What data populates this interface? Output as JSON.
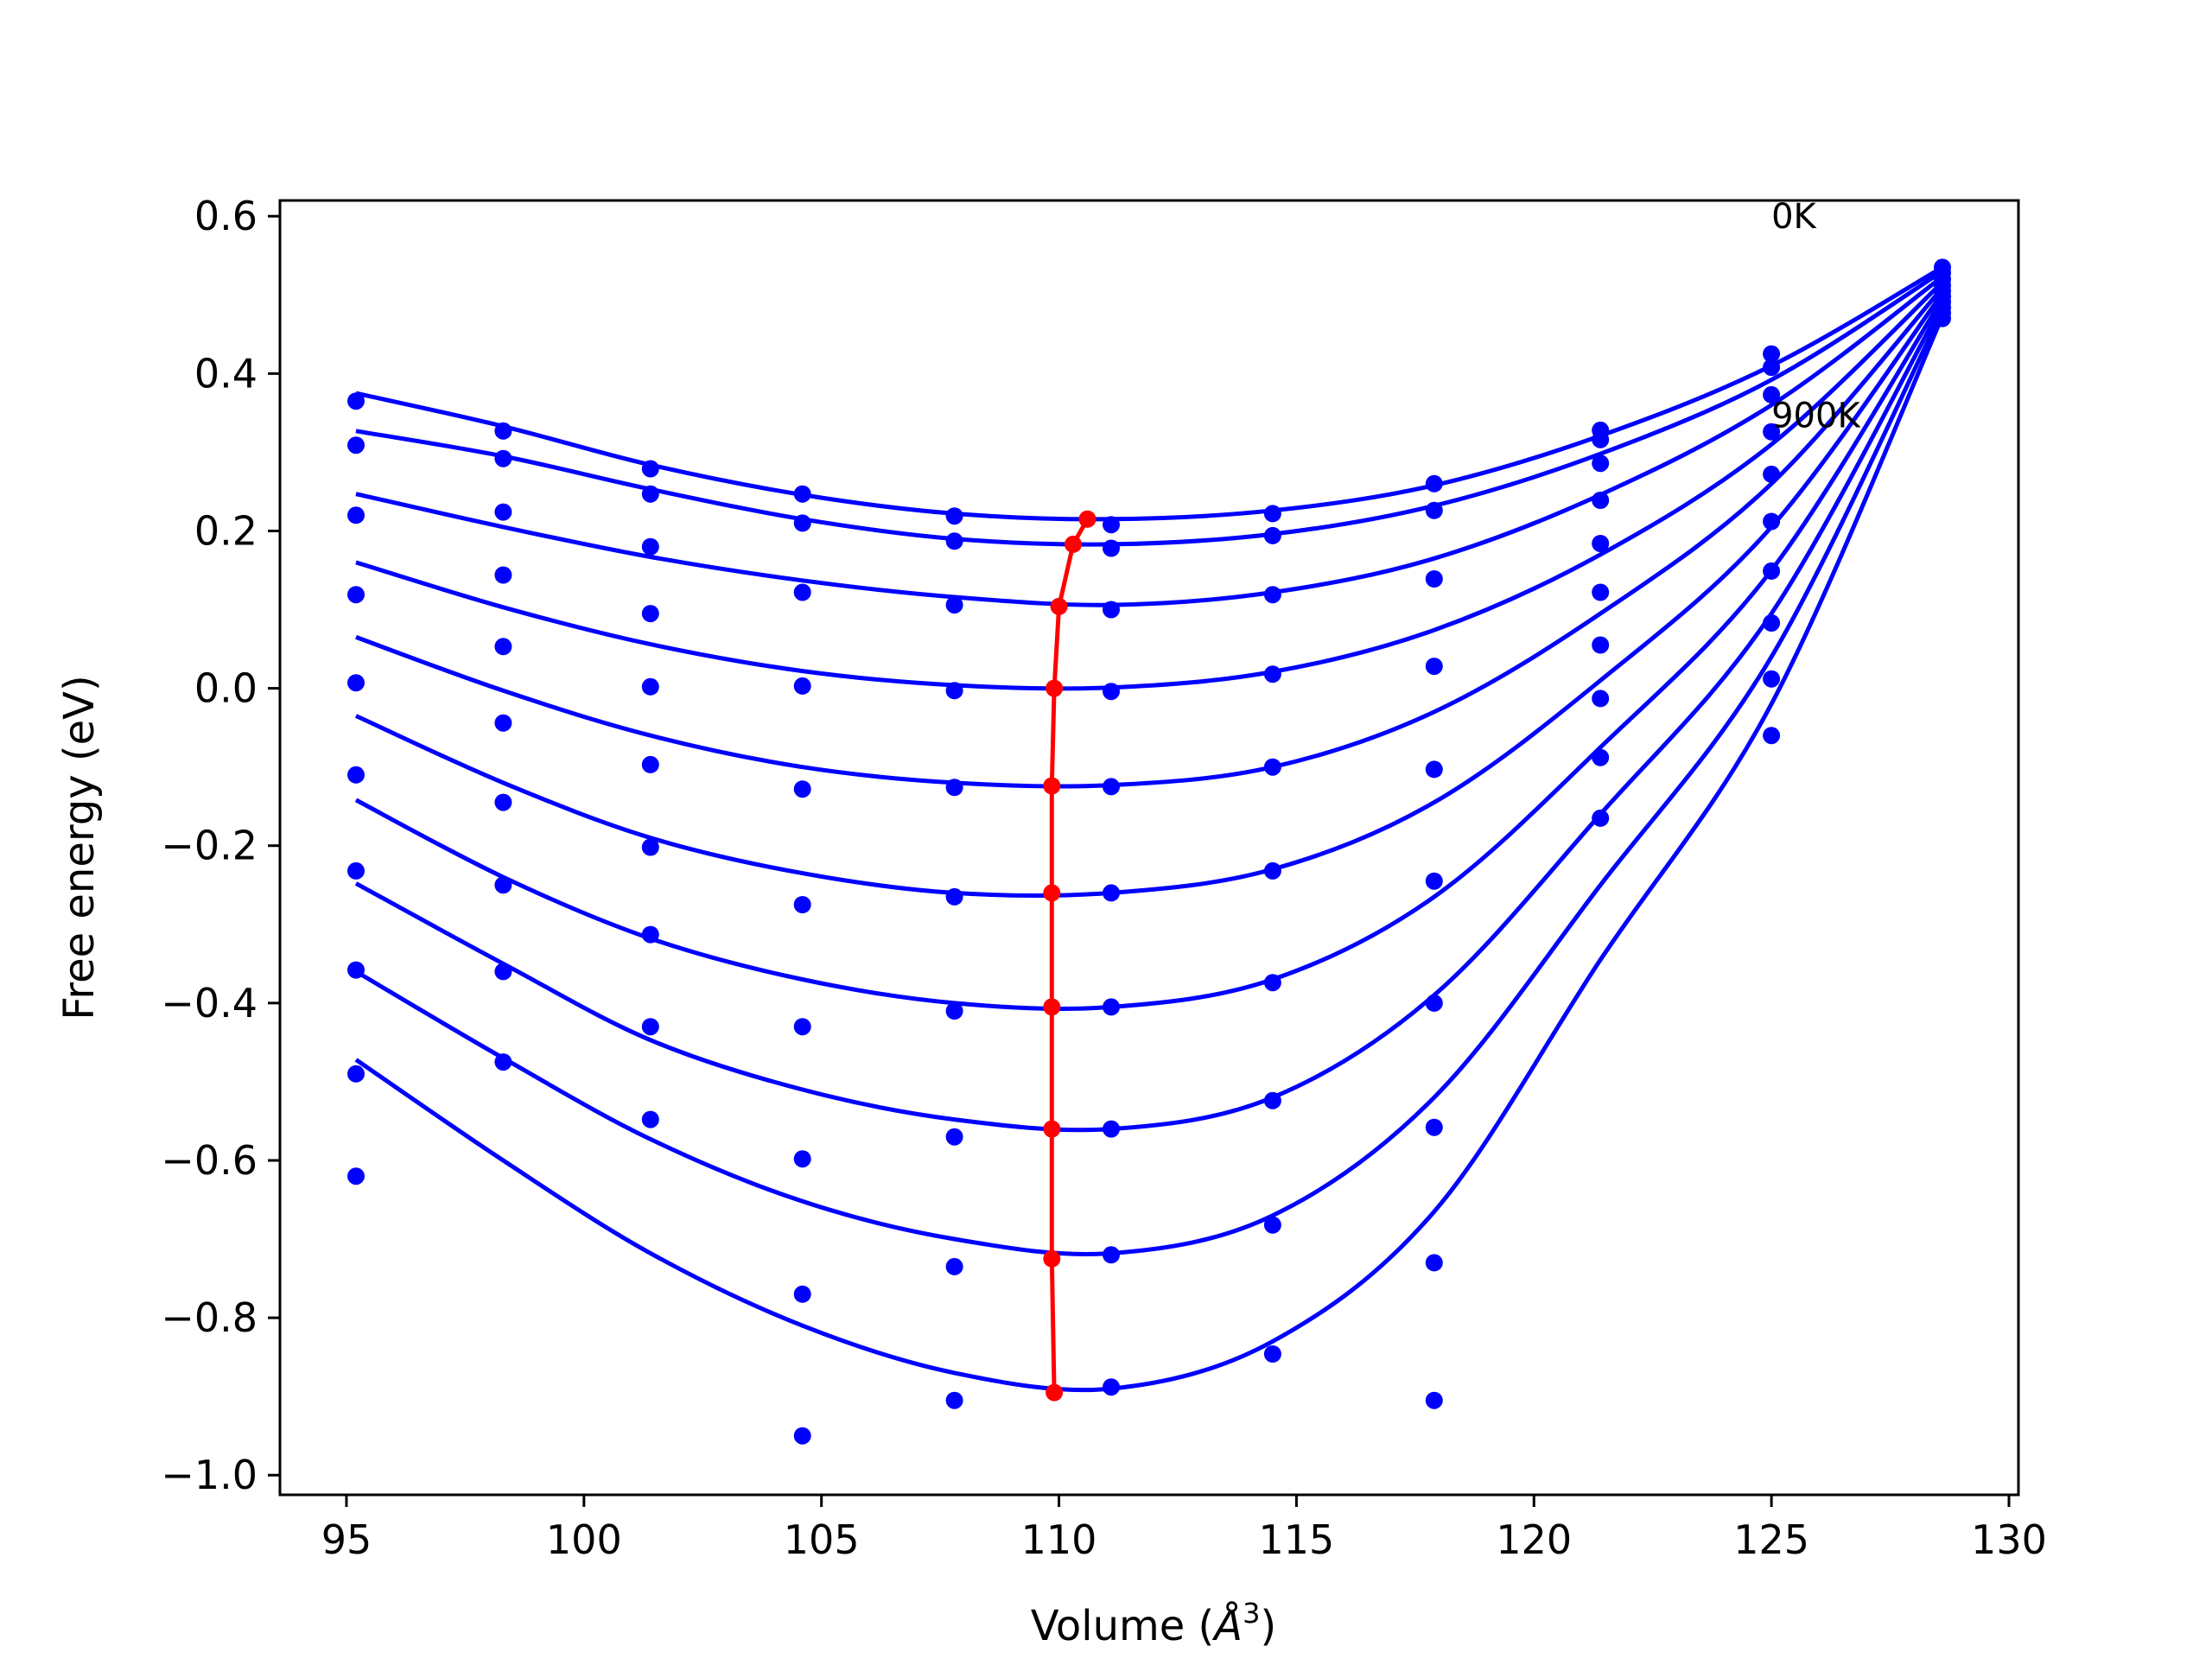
{
  "chart_data": {
    "type": "scatter",
    "title": "",
    "xlabel": "Volume (",
    "xlabel_unit": "Å",
    "xlabel_exp": "3",
    "xlabel_close": ")",
    "ylabel": "Free energy (eV)",
    "xlim": [
      93.6,
      130.2
    ],
    "ylim": [
      -1.025,
      0.62
    ],
    "xticks": [
      95,
      100,
      105,
      110,
      115,
      120,
      125,
      130
    ],
    "xtick_labels": [
      "95",
      "100",
      "105",
      "110",
      "115",
      "120",
      "125",
      "130"
    ],
    "yticks": [
      0.6,
      0.4,
      0.2,
      0.0,
      -0.2,
      -0.4,
      -0.6,
      -0.8,
      -1.0
    ],
    "ytick_labels": [
      "0.6",
      "0.4",
      "0.2",
      "0.0",
      "−0.2",
      "−0.4",
      "−0.6",
      "−0.8",
      "−1.0"
    ],
    "annotations": [
      {
        "text": "0K",
        "x": 125.0,
        "y": 0.585
      },
      {
        "text": "900K",
        "x": 125.0,
        "y": 0.332
      }
    ],
    "colors": {
      "fit": "#0000ff",
      "points": "#0000ff",
      "minima": "#ff0000"
    },
    "x": [
      95.2,
      98.3,
      101.4,
      104.6,
      107.8,
      111.1,
      114.5,
      117.9,
      121.4,
      125.0,
      128.6
    ],
    "scatter_series": [
      {
        "y": [
          0.365,
          0.327,
          0.279,
          0.247,
          0.219,
          0.208,
          0.222,
          0.26,
          0.328,
          0.425,
          0.535
        ]
      },
      {
        "y": [
          0.309,
          0.292,
          0.247,
          0.21,
          0.187,
          0.178,
          0.194,
          0.226,
          0.316,
          0.408,
          0.528
        ]
      },
      {
        "y": [
          0.22,
          0.224,
          0.18,
          0.122,
          0.106,
          0.1,
          0.119,
          0.139,
          0.286,
          0.373,
          0.52
        ]
      },
      {
        "y": [
          0.119,
          0.144,
          0.095,
          0.003,
          -0.003,
          -0.004,
          0.018,
          0.028,
          0.239,
          0.326,
          0.512
        ]
      },
      {
        "y": [
          0.007,
          0.053,
          0.002,
          -0.128,
          -0.126,
          -0.125,
          -0.1,
          -0.103,
          0.184,
          0.272,
          0.505
        ]
      },
      {
        "y": [
          -0.11,
          -0.044,
          -0.097,
          -0.275,
          -0.265,
          -0.26,
          -0.232,
          -0.245,
          0.122,
          0.212,
          0.498
        ]
      },
      {
        "y": [
          -0.232,
          -0.145,
          -0.202,
          -0.43,
          -0.41,
          -0.405,
          -0.374,
          -0.4,
          0.055,
          0.149,
          0.491
        ]
      },
      {
        "y": [
          -0.358,
          -0.25,
          -0.313,
          -0.598,
          -0.57,
          -0.56,
          -0.524,
          -0.558,
          -0.013,
          0.083,
          0.484
        ]
      },
      {
        "y": [
          -0.49,
          -0.36,
          -0.43,
          -0.77,
          -0.735,
          -0.72,
          -0.682,
          -0.73,
          -0.088,
          0.012,
          0.477
        ]
      },
      {
        "y": [
          -0.62,
          -0.475,
          -0.548,
          -0.95,
          -0.905,
          -0.888,
          -0.846,
          -0.905,
          -0.165,
          -0.06,
          0.47
        ]
      }
    ],
    "fit_curves": [
      {
        "x": [
          95.2,
          98.3,
          101.4,
          104.6,
          107.8,
          111.1,
          114.5,
          117.9,
          121.4,
          125.0,
          128.6
        ],
        "y": [
          0.375,
          0.333,
          0.284,
          0.246,
          0.222,
          0.215,
          0.226,
          0.258,
          0.321,
          0.41,
          0.535
        ]
      },
      {
        "x": [
          95.2,
          98.3,
          101.4,
          104.6,
          107.8,
          111.1,
          114.5,
          117.9,
          121.4,
          125.0,
          128.6
        ],
        "y": [
          0.327,
          0.295,
          0.253,
          0.215,
          0.19,
          0.183,
          0.196,
          0.232,
          0.298,
          0.392,
          0.53
        ]
      },
      {
        "x": [
          95.2,
          98.3,
          101.4,
          104.6,
          107.8,
          111.1,
          114.5,
          117.9,
          121.4,
          125.0,
          128.6
        ],
        "y": [
          0.247,
          0.205,
          0.167,
          0.137,
          0.116,
          0.106,
          0.122,
          0.165,
          0.246,
          0.36,
          0.523
        ]
      },
      {
        "x": [
          95.2,
          98.3,
          101.4,
          104.6,
          107.8,
          111.1,
          114.5,
          117.9,
          121.4,
          125.0,
          128.6
        ],
        "y": [
          0.16,
          0.103,
          0.056,
          0.022,
          0.004,
          0.001,
          0.021,
          0.074,
          0.17,
          0.31,
          0.516
        ]
      },
      {
        "x": [
          95.2,
          98.3,
          101.4,
          104.6,
          107.8,
          111.1,
          114.5,
          117.9,
          121.4,
          125.0,
          128.6
        ],
        "y": [
          0.065,
          -0.003,
          -0.06,
          -0.1,
          -0.12,
          -0.123,
          -0.1,
          -0.03,
          0.095,
          0.26,
          0.509
        ]
      },
      {
        "x": [
          95.2,
          98.3,
          101.4,
          104.6,
          107.8,
          111.1,
          114.5,
          117.9,
          121.4,
          125.0,
          128.6
        ],
        "y": [
          -0.035,
          -0.12,
          -0.19,
          -0.235,
          -0.26,
          -0.26,
          -0.23,
          -0.145,
          0.01,
          0.205,
          0.502
        ]
      },
      {
        "x": [
          95.2,
          98.3,
          101.4,
          104.6,
          107.8,
          111.1,
          114.5,
          117.9,
          121.4,
          125.0,
          128.6
        ],
        "y": [
          -0.142,
          -0.24,
          -0.318,
          -0.37,
          -0.4,
          -0.405,
          -0.37,
          -0.265,
          -0.075,
          0.15,
          0.495
        ]
      },
      {
        "x": [
          95.2,
          98.3,
          101.4,
          104.6,
          107.8,
          111.1,
          114.5,
          117.9,
          121.4,
          125.0,
          128.6
        ],
        "y": [
          -0.248,
          -0.35,
          -0.447,
          -0.51,
          -0.548,
          -0.56,
          -0.52,
          -0.39,
          -0.16,
          0.095,
          0.488
        ]
      },
      {
        "x": [
          95.2,
          98.3,
          101.4,
          104.6,
          107.8,
          111.1,
          114.5,
          117.9,
          121.4,
          125.0,
          128.6
        ],
        "y": [
          -0.36,
          -0.47,
          -0.573,
          -0.652,
          -0.7,
          -0.718,
          -0.67,
          -0.52,
          -0.25,
          0.04,
          0.48
        ]
      },
      {
        "x": [
          95.2,
          98.3,
          101.4,
          104.6,
          107.8,
          111.1,
          114.5,
          117.9,
          121.4,
          125.0,
          128.6
        ],
        "y": [
          -0.472,
          -0.6,
          -0.718,
          -0.81,
          -0.87,
          -0.89,
          -0.83,
          -0.665,
          -0.345,
          -0.02,
          0.473
        ]
      }
    ],
    "minima": {
      "x": [
        110.6,
        110.3,
        110.0,
        109.9,
        109.85,
        109.85,
        109.85,
        109.85,
        109.85,
        109.9
      ],
      "y": [
        0.215,
        0.183,
        0.104,
        0.0,
        -0.124,
        -0.26,
        -0.405,
        -0.56,
        -0.725,
        -0.895
      ]
    }
  }
}
